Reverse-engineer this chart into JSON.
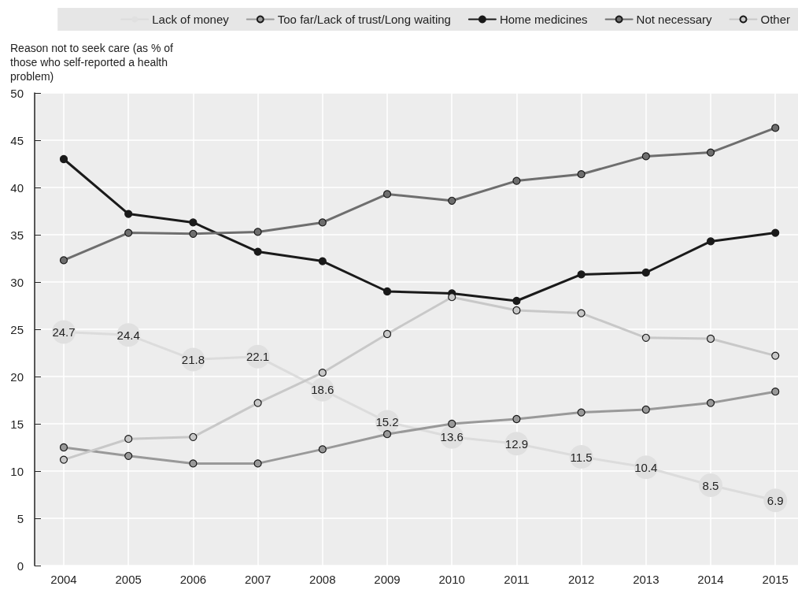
{
  "chart_data": {
    "type": "line",
    "ylabel": "Reason not to seek care (as % of those who self-reported a health problem)",
    "x": [
      2004,
      2005,
      2006,
      2007,
      2008,
      2009,
      2010,
      2011,
      2012,
      2013,
      2014,
      2015
    ],
    "xlim": [
      2003.55,
      2015.35
    ],
    "xticks": [
      2004,
      2005,
      2006,
      2007,
      2008,
      2009,
      2010,
      2011,
      2012,
      2013,
      2014,
      2015
    ],
    "ylim": [
      0,
      50
    ],
    "yticks": [
      0,
      5,
      10,
      15,
      20,
      25,
      30,
      35,
      40,
      45,
      50
    ],
    "grid": true,
    "legend": "top",
    "marker": "circle",
    "line_style": "solid",
    "series": [
      {
        "name": "Lack of money",
        "color": "#dcdcdc",
        "values": [
          24.7,
          24.4,
          21.8,
          22.1,
          18.6,
          15.2,
          13.6,
          12.9,
          11.5,
          10.4,
          8.5,
          6.9
        ],
        "value_labels": [
          "24.7",
          "24.4",
          "21.8",
          "22.1",
          "18.6",
          "15.2",
          "13.6",
          "12.9",
          "11.5",
          "10.4",
          "8.5",
          "6.9"
        ]
      },
      {
        "name": "Too far/Lack of trust/Long waiting",
        "color": "#999999",
        "values": [
          12.5,
          11.6,
          10.8,
          10.8,
          12.3,
          13.9,
          15.0,
          15.5,
          16.2,
          16.5,
          17.2,
          18.4
        ]
      },
      {
        "name": "Home medicines",
        "color": "#1a1a1a",
        "values": [
          43.0,
          37.2,
          36.3,
          33.2,
          32.2,
          29.0,
          28.8,
          28.0,
          30.8,
          31.0,
          34.3,
          35.2
        ]
      },
      {
        "name": "Not necessary",
        "color": "#6e6e6e",
        "values": [
          32.3,
          35.2,
          35.1,
          35.3,
          36.3,
          39.3,
          38.6,
          40.7,
          41.4,
          43.3,
          43.7,
          46.3
        ]
      },
      {
        "name": "Other",
        "color": "#c8c8c8",
        "values": [
          11.2,
          13.4,
          13.6,
          17.2,
          20.4,
          24.5,
          28.4,
          27.0,
          26.7,
          24.1,
          24.0,
          22.2
        ]
      }
    ]
  }
}
